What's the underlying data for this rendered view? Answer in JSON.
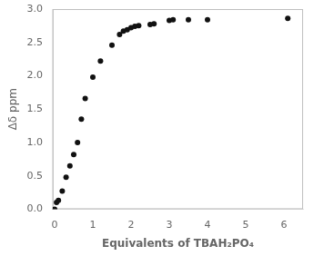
{
  "chart_data": {
    "type": "scatter",
    "x": [
      0.0,
      0.05,
      0.1,
      0.2,
      0.3,
      0.4,
      0.5,
      0.6,
      0.7,
      0.8,
      1.0,
      1.2,
      1.5,
      1.7,
      1.8,
      1.9,
      2.0,
      2.1,
      2.2,
      2.5,
      2.6,
      3.0,
      3.1,
      3.5,
      4.0,
      6.1
    ],
    "values": [
      0.0,
      0.1,
      0.13,
      0.27,
      0.48,
      0.65,
      0.82,
      1.0,
      1.35,
      1.66,
      1.98,
      2.22,
      2.46,
      2.62,
      2.67,
      2.69,
      2.72,
      2.74,
      2.75,
      2.77,
      2.78,
      2.83,
      2.84,
      2.84,
      2.84,
      2.86
    ],
    "xlabel": "Equivalents of TBAH₂PO₄",
    "ylabel": "Δδ ppm",
    "xlim": [
      -0.05,
      6.5
    ],
    "ylim": [
      0,
      3.0
    ],
    "xticks": [
      0,
      1,
      2,
      3,
      4,
      5,
      6
    ],
    "yticks": [
      {
        "value": 0,
        "label": "0.0"
      },
      0.5,
      {
        "value": 1,
        "label": "1.0"
      },
      1.5,
      {
        "value": 2,
        "label": "2.0"
      },
      2.5,
      {
        "value": 3,
        "label": "3.0"
      }
    ],
    "color": "#111111",
    "marker": "circle",
    "grid": false
  }
}
